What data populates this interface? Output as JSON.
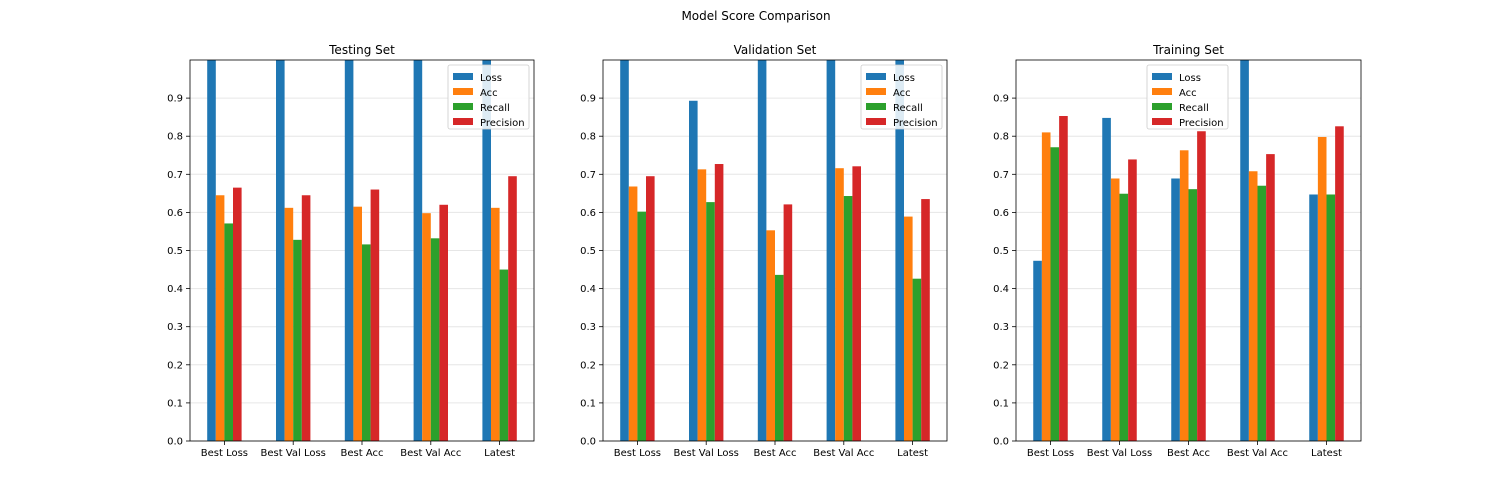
{
  "suptitle": "Model Score Comparison",
  "chart_data": [
    {
      "type": "bar",
      "title": "Testing Set",
      "categories": [
        "Best Loss",
        "Best Val Loss",
        "Best Acc",
        "Best Val Acc",
        "Latest"
      ],
      "ylim": [
        0,
        1.0
      ],
      "yticks": [
        "0.0",
        "0.1",
        "0.2",
        "0.3",
        "0.4",
        "0.5",
        "0.6",
        "0.7",
        "0.8",
        "0.9"
      ],
      "grid": "horizontal",
      "legend_position": "top-right",
      "series": [
        {
          "name": "Loss",
          "color": "#1f77b4",
          "values": [
            1.0,
            1.0,
            1.0,
            1.0,
            1.0
          ]
        },
        {
          "name": "Acc",
          "color": "#ff7f0e",
          "values": [
            0.645,
            0.612,
            0.615,
            0.598,
            0.612
          ]
        },
        {
          "name": "Recall",
          "color": "#2ca02c",
          "values": [
            0.571,
            0.528,
            0.516,
            0.532,
            0.45
          ]
        },
        {
          "name": "Precision",
          "color": "#d62728",
          "values": [
            0.665,
            0.645,
            0.66,
            0.62,
            0.695
          ]
        }
      ]
    },
    {
      "type": "bar",
      "title": "Validation Set",
      "categories": [
        "Best Loss",
        "Best Val Loss",
        "Best Acc",
        "Best Val Acc",
        "Latest"
      ],
      "ylim": [
        0,
        1.0
      ],
      "yticks": [
        "0.0",
        "0.1",
        "0.2",
        "0.3",
        "0.4",
        "0.5",
        "0.6",
        "0.7",
        "0.8",
        "0.9"
      ],
      "grid": "horizontal",
      "legend_position": "top-right",
      "series": [
        {
          "name": "Loss",
          "color": "#1f77b4",
          "values": [
            1.0,
            0.893,
            1.0,
            1.0,
            1.0
          ]
        },
        {
          "name": "Acc",
          "color": "#ff7f0e",
          "values": [
            0.668,
            0.713,
            0.553,
            0.716,
            0.589
          ]
        },
        {
          "name": "Recall",
          "color": "#2ca02c",
          "values": [
            0.602,
            0.627,
            0.436,
            0.643,
            0.426
          ]
        },
        {
          "name": "Precision",
          "color": "#d62728",
          "values": [
            0.695,
            0.727,
            0.621,
            0.721,
            0.635
          ]
        }
      ]
    },
    {
      "type": "bar",
      "title": "Training Set",
      "categories": [
        "Best Loss",
        "Best Val Loss",
        "Best Acc",
        "Best Val Acc",
        "Latest"
      ],
      "ylim": [
        0,
        1.0
      ],
      "yticks": [
        "0.0",
        "0.1",
        "0.2",
        "0.3",
        "0.4",
        "0.5",
        "0.6",
        "0.7",
        "0.8",
        "0.9"
      ],
      "grid": "horizontal",
      "legend_position": "top-center",
      "series": [
        {
          "name": "Loss",
          "color": "#1f77b4",
          "values": [
            0.473,
            0.848,
            0.689,
            1.0,
            0.647
          ]
        },
        {
          "name": "Acc",
          "color": "#ff7f0e",
          "values": [
            0.81,
            0.689,
            0.763,
            0.708,
            0.798
          ]
        },
        {
          "name": "Recall",
          "color": "#2ca02c",
          "values": [
            0.771,
            0.649,
            0.661,
            0.67,
            0.647
          ]
        },
        {
          "name": "Precision",
          "color": "#d62728",
          "values": [
            0.853,
            0.739,
            0.813,
            0.753,
            0.826
          ]
        }
      ]
    }
  ]
}
